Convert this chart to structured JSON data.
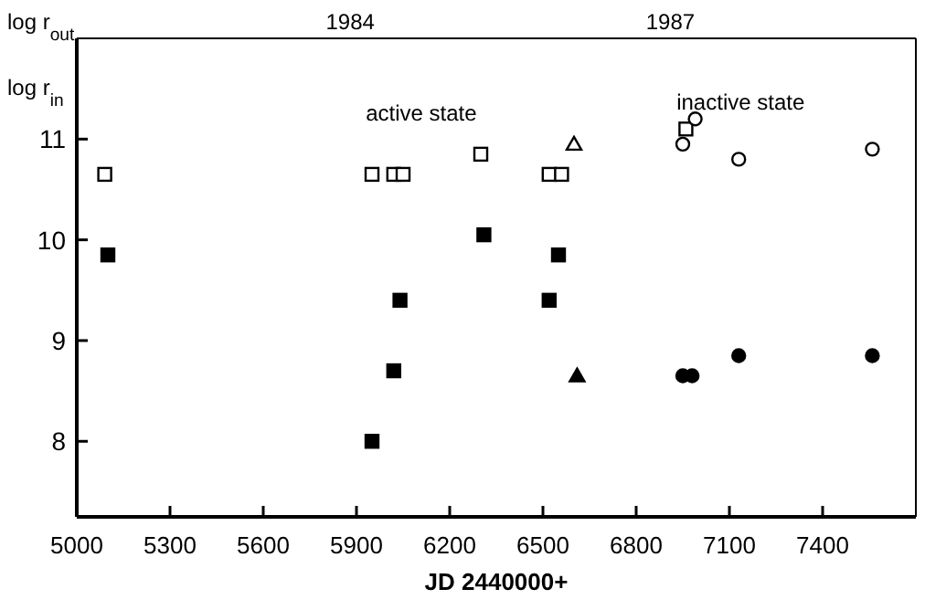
{
  "chart_data": {
    "type": "scatter",
    "xlabel": "JD 2440000+",
    "ylabel": "log r$_{out}$",
    "annotations": [
      "log r$_{in}$",
      "active state",
      "inactive state",
      "1984",
      "1987"
    ],
    "xlim": [
      5000,
      7700
    ],
    "xticks": [
      5000,
      5300,
      5600,
      5900,
      6200,
      6500,
      6800,
      7100,
      7400
    ],
    "ylim": [
      7.25,
      12
    ],
    "yticks": [
      8,
      9,
      10,
      11
    ],
    "grid": false,
    "series": [
      {
        "marker": "square",
        "color": "#ffffff",
        "x": [
          5090,
          5950,
          6020,
          6050,
          6300,
          6520,
          6560,
          6960
        ],
        "values": [
          10.65,
          10.65,
          10.65,
          10.65,
          10.85,
          10.65,
          10.65,
          11.1
        ]
      },
      {
        "marker": "triangle",
        "color": "#ffffff",
        "x": [
          6600
        ],
        "values": [
          10.95
        ]
      },
      {
        "marker": "circle",
        "color": "#ffffff",
        "x": [
          6950,
          6990,
          7130,
          7560
        ],
        "values": [
          10.95,
          11.2,
          10.8,
          10.9
        ]
      },
      {
        "marker": "square",
        "color": "#000000",
        "x": [
          5100,
          5950,
          6020,
          6040,
          6310,
          6520,
          6550
        ],
        "values": [
          9.85,
          8.0,
          8.7,
          9.4,
          10.05,
          9.4,
          9.85
        ]
      },
      {
        "marker": "triangle",
        "color": "#000000",
        "x": [
          6610
        ],
        "values": [
          8.65
        ]
      },
      {
        "marker": "circle",
        "color": "#000000",
        "x": [
          6950,
          6980,
          7130,
          7560
        ],
        "values": [
          8.65,
          8.65,
          8.85,
          8.85
        ]
      }
    ]
  }
}
